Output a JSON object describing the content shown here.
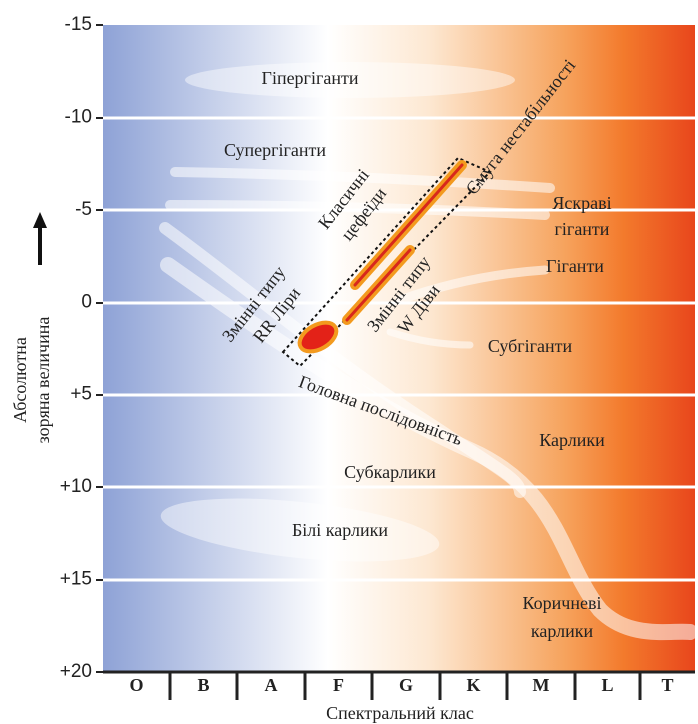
{
  "y_axis": {
    "label_lines": [
      "Абсолютна",
      "зоряна величина"
    ],
    "ticks": [
      "-15",
      "-10",
      "-5",
      "0",
      "+5",
      "+10",
      "+15",
      "+20"
    ]
  },
  "x_axis": {
    "label": "Спектральний клас",
    "classes": [
      "O",
      "B",
      "A",
      "F",
      "G",
      "K",
      "M",
      "L",
      "T"
    ]
  },
  "regions": {
    "hypergiants": "Гіпергіганти",
    "supergiants": "Супергіганти",
    "bright_giants": [
      "Яскраві",
      "гіганти"
    ],
    "giants": "Гіганти",
    "subgiants": "Субгіганти",
    "main_sequence": "Головна послідовність",
    "dwarfs": "Карлики",
    "subdwarfs": "Субкарлики",
    "white_dwarfs": "Білі карлики",
    "brown_dwarfs": [
      "Коричневі",
      "карлики"
    ],
    "instability_strip": "Смуга нестабільності",
    "cepheids": [
      "Класичні",
      "цефеїди"
    ],
    "w_virginis": [
      "Змінні типу",
      "W Діви"
    ],
    "rr_lyrae": [
      "Змінні типу",
      "RR Ліри"
    ]
  }
}
